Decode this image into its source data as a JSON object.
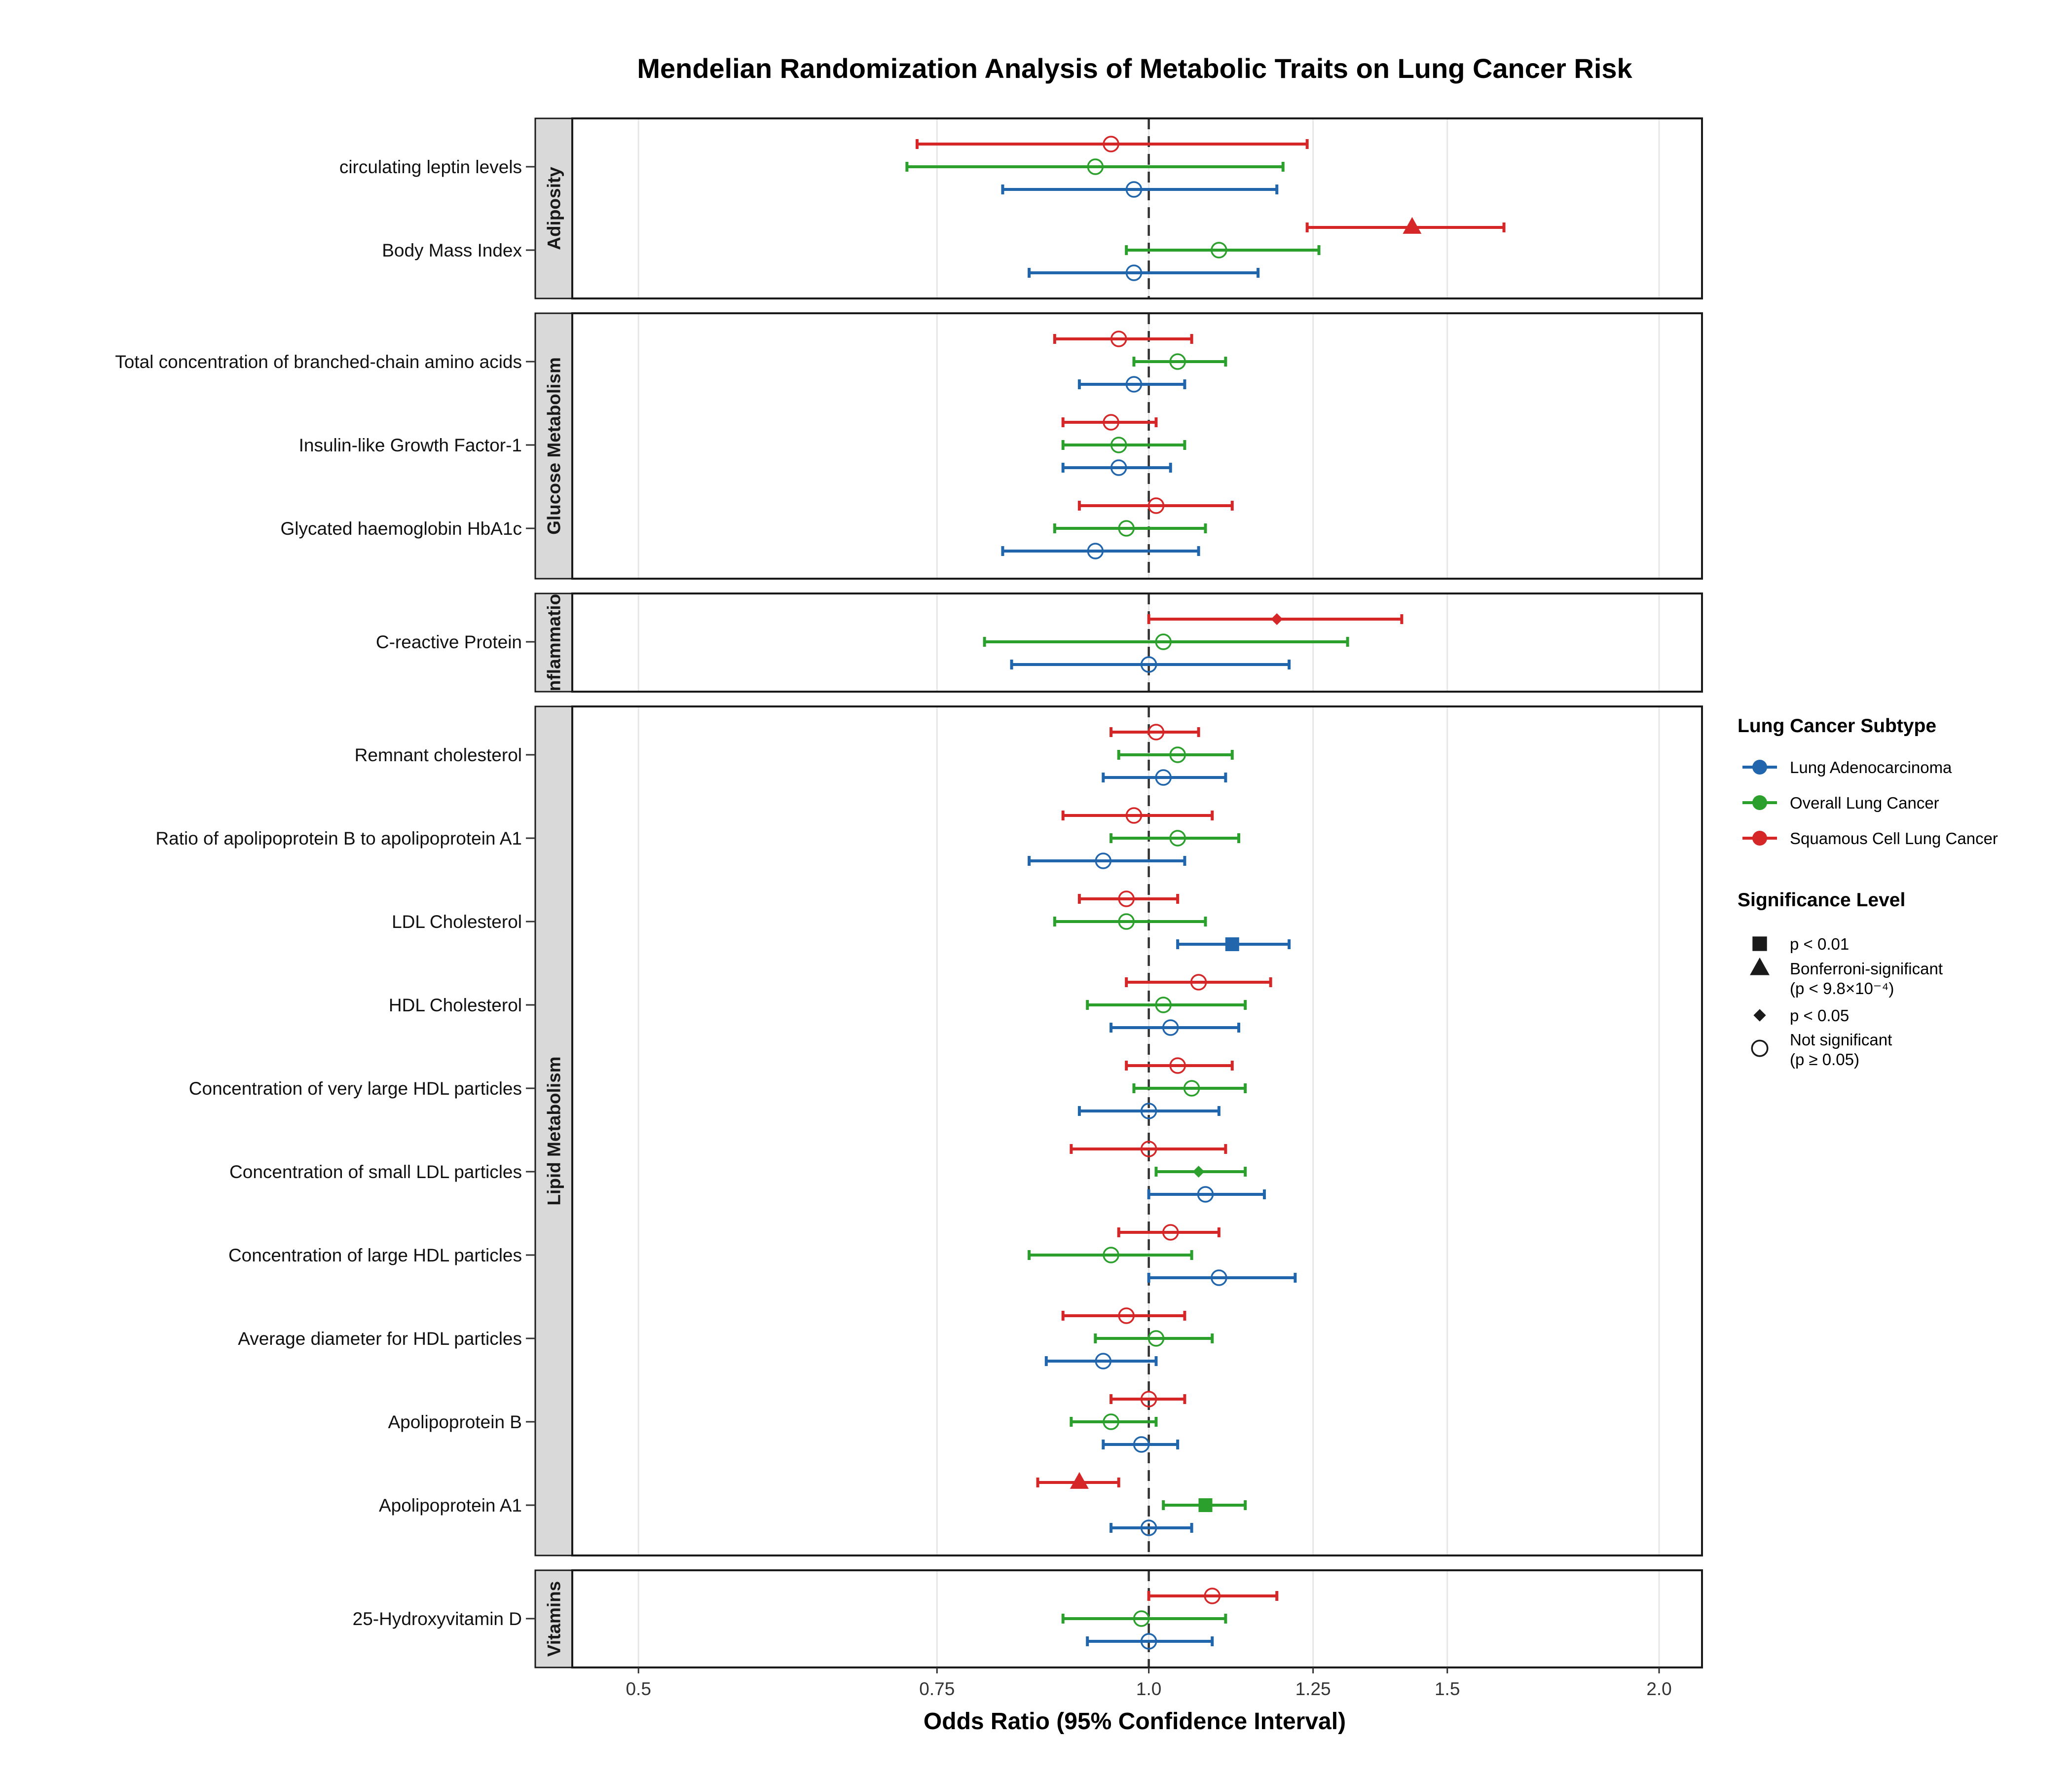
{
  "chart_data": {
    "type": "forest",
    "title": "Mendelian Randomization Analysis of Metabolic Traits on Lung Cancer Risk",
    "xlabel": "Odds Ratio (95% Confidence Interval)",
    "x_scale": "log",
    "xlim": [
      0.457,
      2.12
    ],
    "x_ticks": [
      0.5,
      0.75,
      1.0,
      1.25,
      1.5,
      2.0
    ],
    "x_tick_labels": [
      "0.5",
      "0.75",
      "1.0",
      "1.25",
      "1.5",
      "2.0"
    ],
    "reference_line": 1.0,
    "grid": true,
    "colors": {
      "Lung Adenocarcinoma": "#2166ac",
      "Overall Lung Cancer": "#2ca02c",
      "Squamous Cell Lung Cancer": "#d62728"
    },
    "subtypes": [
      "Lung Adenocarcinoma",
      "Overall Lung Cancer",
      "Squamous Cell Lung Cancer"
    ],
    "panels": [
      {
        "name": "Adiposity",
        "traits": [
          {
            "name": "circulating leptin levels",
            "estimates": [
              {
                "subtype": "Squamous Cell Lung Cancer",
                "or": 0.95,
                "lo": 0.73,
                "hi": 1.24,
                "sig": "ns"
              },
              {
                "subtype": "Overall Lung Cancer",
                "or": 0.93,
                "lo": 0.72,
                "hi": 1.2,
                "sig": "ns"
              },
              {
                "subtype": "Lung Adenocarcinoma",
                "or": 0.98,
                "lo": 0.82,
                "hi": 1.19,
                "sig": "ns"
              }
            ]
          },
          {
            "name": "Body Mass Index",
            "estimates": [
              {
                "subtype": "Squamous Cell Lung Cancer",
                "or": 1.43,
                "lo": 1.24,
                "hi": 1.62,
                "sig": "bonf"
              },
              {
                "subtype": "Overall Lung Cancer",
                "or": 1.1,
                "lo": 0.97,
                "hi": 1.26,
                "sig": "ns"
              },
              {
                "subtype": "Lung Adenocarcinoma",
                "or": 0.98,
                "lo": 0.85,
                "hi": 1.16,
                "sig": "ns"
              }
            ]
          }
        ]
      },
      {
        "name": "Glucose Metabolism",
        "traits": [
          {
            "name": "Total concentration of branched-chain amino acids",
            "estimates": [
              {
                "subtype": "Squamous Cell Lung Cancer",
                "or": 0.96,
                "lo": 0.88,
                "hi": 1.06,
                "sig": "ns"
              },
              {
                "subtype": "Overall Lung Cancer",
                "or": 1.04,
                "lo": 0.98,
                "hi": 1.11,
                "sig": "ns"
              },
              {
                "subtype": "Lung Adenocarcinoma",
                "or": 0.98,
                "lo": 0.91,
                "hi": 1.05,
                "sig": "ns"
              }
            ]
          },
          {
            "name": "Insulin-like Growth Factor-1",
            "estimates": [
              {
                "subtype": "Squamous Cell Lung Cancer",
                "or": 0.95,
                "lo": 0.89,
                "hi": 1.01,
                "sig": "ns"
              },
              {
                "subtype": "Overall Lung Cancer",
                "or": 0.96,
                "lo": 0.89,
                "hi": 1.05,
                "sig": "ns"
              },
              {
                "subtype": "Lung Adenocarcinoma",
                "or": 0.96,
                "lo": 0.89,
                "hi": 1.03,
                "sig": "ns"
              }
            ]
          },
          {
            "name": "Glycated haemoglobin HbA1c",
            "estimates": [
              {
                "subtype": "Squamous Cell Lung Cancer",
                "or": 1.01,
                "lo": 0.91,
                "hi": 1.12,
                "sig": "ns"
              },
              {
                "subtype": "Overall Lung Cancer",
                "or": 0.97,
                "lo": 0.88,
                "hi": 1.08,
                "sig": "ns"
              },
              {
                "subtype": "Lung Adenocarcinoma",
                "or": 0.93,
                "lo": 0.82,
                "hi": 1.07,
                "sig": "ns"
              }
            ]
          }
        ]
      },
      {
        "name": "Inflammation",
        "strip_label": "nflammatio",
        "traits": [
          {
            "name": "C-reactive Protein",
            "estimates": [
              {
                "subtype": "Squamous Cell Lung Cancer",
                "or": 1.19,
                "lo": 1.0,
                "hi": 1.41,
                "sig": "p05"
              },
              {
                "subtype": "Overall Lung Cancer",
                "or": 1.02,
                "lo": 0.8,
                "hi": 1.31,
                "sig": "ns"
              },
              {
                "subtype": "Lung Adenocarcinoma",
                "or": 1.0,
                "lo": 0.83,
                "hi": 1.21,
                "sig": "ns"
              }
            ]
          }
        ]
      },
      {
        "name": "Lipid Metabolism",
        "traits": [
          {
            "name": "Remnant cholesterol",
            "estimates": [
              {
                "subtype": "Squamous Cell Lung Cancer",
                "or": 1.01,
                "lo": 0.95,
                "hi": 1.07,
                "sig": "ns"
              },
              {
                "subtype": "Overall Lung Cancer",
                "or": 1.04,
                "lo": 0.96,
                "hi": 1.12,
                "sig": "ns"
              },
              {
                "subtype": "Lung Adenocarcinoma",
                "or": 1.02,
                "lo": 0.94,
                "hi": 1.11,
                "sig": "ns"
              }
            ]
          },
          {
            "name": "Ratio of apolipoprotein B to apolipoprotein A1",
            "estimates": [
              {
                "subtype": "Squamous Cell Lung Cancer",
                "or": 0.98,
                "lo": 0.89,
                "hi": 1.09,
                "sig": "ns"
              },
              {
                "subtype": "Overall Lung Cancer",
                "or": 1.04,
                "lo": 0.95,
                "hi": 1.13,
                "sig": "ns"
              },
              {
                "subtype": "Lung Adenocarcinoma",
                "or": 0.94,
                "lo": 0.85,
                "hi": 1.05,
                "sig": "ns"
              }
            ]
          },
          {
            "name": "LDL Cholesterol",
            "estimates": [
              {
                "subtype": "Squamous Cell Lung Cancer",
                "or": 0.97,
                "lo": 0.91,
                "hi": 1.04,
                "sig": "ns"
              },
              {
                "subtype": "Overall Lung Cancer",
                "or": 0.97,
                "lo": 0.88,
                "hi": 1.08,
                "sig": "ns"
              },
              {
                "subtype": "Lung Adenocarcinoma",
                "or": 1.12,
                "lo": 1.04,
                "hi": 1.21,
                "sig": "p01"
              }
            ]
          },
          {
            "name": "HDL Cholesterol",
            "estimates": [
              {
                "subtype": "Squamous Cell Lung Cancer",
                "or": 1.07,
                "lo": 0.97,
                "hi": 1.18,
                "sig": "ns"
              },
              {
                "subtype": "Overall Lung Cancer",
                "or": 1.02,
                "lo": 0.92,
                "hi": 1.14,
                "sig": "ns"
              },
              {
                "subtype": "Lung Adenocarcinoma",
                "or": 1.03,
                "lo": 0.95,
                "hi": 1.13,
                "sig": "ns"
              }
            ]
          },
          {
            "name": "Concentration of very large HDL particles",
            "estimates": [
              {
                "subtype": "Squamous Cell Lung Cancer",
                "or": 1.04,
                "lo": 0.97,
                "hi": 1.12,
                "sig": "ns"
              },
              {
                "subtype": "Overall Lung Cancer",
                "or": 1.06,
                "lo": 0.98,
                "hi": 1.14,
                "sig": "ns"
              },
              {
                "subtype": "Lung Adenocarcinoma",
                "or": 1.0,
                "lo": 0.91,
                "hi": 1.1,
                "sig": "ns"
              }
            ]
          },
          {
            "name": "Concentration of small LDL particles",
            "estimates": [
              {
                "subtype": "Squamous Cell Lung Cancer",
                "or": 1.0,
                "lo": 0.9,
                "hi": 1.11,
                "sig": "ns"
              },
              {
                "subtype": "Overall Lung Cancer",
                "or": 1.07,
                "lo": 1.01,
                "hi": 1.14,
                "sig": "p05"
              },
              {
                "subtype": "Lung Adenocarcinoma",
                "or": 1.08,
                "lo": 1.0,
                "hi": 1.17,
                "sig": "ns"
              }
            ]
          },
          {
            "name": "Concentration of large HDL particles",
            "estimates": [
              {
                "subtype": "Squamous Cell Lung Cancer",
                "or": 1.03,
                "lo": 0.96,
                "hi": 1.1,
                "sig": "ns"
              },
              {
                "subtype": "Overall Lung Cancer",
                "or": 0.95,
                "lo": 0.85,
                "hi": 1.06,
                "sig": "ns"
              },
              {
                "subtype": "Lung Adenocarcinoma",
                "or": 1.1,
                "lo": 1.0,
                "hi": 1.22,
                "sig": "ns"
              }
            ]
          },
          {
            "name": "Average diameter for HDL particles",
            "estimates": [
              {
                "subtype": "Squamous Cell Lung Cancer",
                "or": 0.97,
                "lo": 0.89,
                "hi": 1.05,
                "sig": "ns"
              },
              {
                "subtype": "Overall Lung Cancer",
                "or": 1.01,
                "lo": 0.93,
                "hi": 1.09,
                "sig": "ns"
              },
              {
                "subtype": "Lung Adenocarcinoma",
                "or": 0.94,
                "lo": 0.87,
                "hi": 1.01,
                "sig": "ns"
              }
            ]
          },
          {
            "name": "Apolipoprotein B",
            "estimates": [
              {
                "subtype": "Squamous Cell Lung Cancer",
                "or": 1.0,
                "lo": 0.95,
                "hi": 1.05,
                "sig": "ns"
              },
              {
                "subtype": "Overall Lung Cancer",
                "or": 0.95,
                "lo": 0.9,
                "hi": 1.01,
                "sig": "ns"
              },
              {
                "subtype": "Lung Adenocarcinoma",
                "or": 0.99,
                "lo": 0.94,
                "hi": 1.04,
                "sig": "ns"
              }
            ]
          },
          {
            "name": "Apolipoprotein A1",
            "estimates": [
              {
                "subtype": "Squamous Cell Lung Cancer",
                "or": 0.91,
                "lo": 0.86,
                "hi": 0.96,
                "sig": "bonf"
              },
              {
                "subtype": "Overall Lung Cancer",
                "or": 1.08,
                "lo": 1.02,
                "hi": 1.14,
                "sig": "p01"
              },
              {
                "subtype": "Lung Adenocarcinoma",
                "or": 1.0,
                "lo": 0.95,
                "hi": 1.06,
                "sig": "ns"
              }
            ]
          }
        ]
      },
      {
        "name": "Vitamins",
        "traits": [
          {
            "name": "25-Hydroxyvitamin D",
            "estimates": [
              {
                "subtype": "Squamous Cell Lung Cancer",
                "or": 1.09,
                "lo": 1.0,
                "hi": 1.19,
                "sig": "ns"
              },
              {
                "subtype": "Overall Lung Cancer",
                "or": 0.99,
                "lo": 0.89,
                "hi": 1.11,
                "sig": "ns"
              },
              {
                "subtype": "Lung Adenocarcinoma",
                "or": 1.0,
                "lo": 0.92,
                "hi": 1.09,
                "sig": "ns"
              }
            ]
          }
        ]
      }
    ],
    "legend": {
      "placement": "right",
      "subtype_title": "Lung Cancer Subtype",
      "subtype_items": [
        "Lung Adenocarcinoma",
        "Overall Lung Cancer",
        "Squamous Cell Lung Cancer"
      ],
      "significance_title": "Significance Level",
      "significance_items": [
        {
          "key": "p01",
          "shape": "square",
          "lines": [
            "p < 0.01"
          ]
        },
        {
          "key": "bonf",
          "shape": "triangle",
          "lines": [
            "Bonferroni-significant",
            "(p < 9.8×10⁻⁴)"
          ]
        },
        {
          "key": "p05",
          "shape": "diamond",
          "lines": [
            "p < 0.05"
          ]
        },
        {
          "key": "ns",
          "shape": "open-circle",
          "lines": [
            "Not significant",
            "(p ≥ 0.05)"
          ]
        }
      ]
    }
  }
}
